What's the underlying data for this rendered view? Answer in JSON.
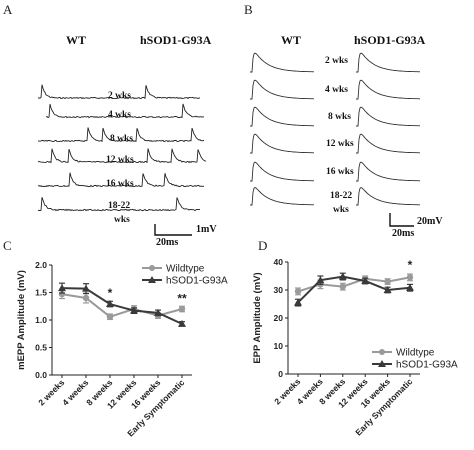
{
  "panel_a": {
    "letter": "A",
    "conditions": [
      "WT",
      "hSOD1-G93A"
    ],
    "rows": [
      "2 wks",
      "4 wks",
      "8 wks",
      "12 wks",
      "16 wks",
      "18-22",
      "wks"
    ],
    "scale_x": "20ms",
    "scale_y": "1mV"
  },
  "panel_b": {
    "letter": "B",
    "conditions": [
      "WT",
      "hSOD1-G93A"
    ],
    "rows": [
      "2 wks",
      "4 wks",
      "8 wks",
      "12 wks",
      "16 wks",
      "18-22",
      "wks"
    ],
    "scale_x": "20ms",
    "scale_y": "20mV"
  },
  "chart_data": [
    {
      "panel": "C",
      "type": "line",
      "ylabel": "mEPP Amplitude (mV)",
      "categories": [
        "2 weeks",
        "4 weeks",
        "8 weeks",
        "12 weeks",
        "16 weeks",
        "Early Symptomatic"
      ],
      "ylim": [
        0.0,
        2.0
      ],
      "yticks": [
        "0.0",
        "0.5",
        "1.0",
        "1.5",
        "2.0"
      ],
      "legend_position": "top-right",
      "series": [
        {
          "name": "Wildtype",
          "marker": "circle",
          "color": "#9a9a9a",
          "values": [
            1.47,
            1.4,
            1.06,
            1.2,
            1.08,
            1.2
          ],
          "errors": [
            0.08,
            0.09,
            0.05,
            0.06,
            0.05,
            0.05
          ]
        },
        {
          "name": "hSOD1-G93A",
          "marker": "triangle",
          "color": "#3a3a3a",
          "values": [
            1.58,
            1.57,
            1.29,
            1.17,
            1.13,
            0.93
          ],
          "errors": [
            0.09,
            0.09,
            0.05,
            0.05,
            0.05,
            0.04
          ]
        }
      ],
      "annotations": [
        {
          "text": "*",
          "category": "8 weeks",
          "y": 1.42
        },
        {
          "text": "**",
          "category": "Early Symptomatic",
          "y": 1.32
        }
      ]
    },
    {
      "panel": "D",
      "type": "line",
      "ylabel": "EPP Amplitude (mV)",
      "categories": [
        "2 weeks",
        "4 weeks",
        "8 weeks",
        "12 weeks",
        "16 weeks",
        "Early Symptomatic"
      ],
      "ylim": [
        0,
        40
      ],
      "yticks": [
        "0",
        "10",
        "20",
        "30",
        "40"
      ],
      "legend_position": "bottom-right",
      "series": [
        {
          "name": "Wildtype",
          "marker": "circle",
          "color": "#9a9a9a",
          "values": [
            29.5,
            32.0,
            31.2,
            34.0,
            33.0,
            34.5
          ],
          "errors": [
            1.2,
            1.5,
            1.2,
            1.0,
            1.0,
            1.2
          ]
        },
        {
          "name": "hSOD1-G93A",
          "marker": "triangle",
          "color": "#3a3a3a",
          "values": [
            25.5,
            33.5,
            34.8,
            33.2,
            30.0,
            30.8
          ],
          "errors": [
            1.2,
            1.5,
            1.2,
            1.0,
            1.0,
            1.2
          ]
        }
      ],
      "annotations": [
        {
          "text": "*",
          "category": "Early Symptomatic",
          "y": 37.5
        }
      ]
    }
  ]
}
